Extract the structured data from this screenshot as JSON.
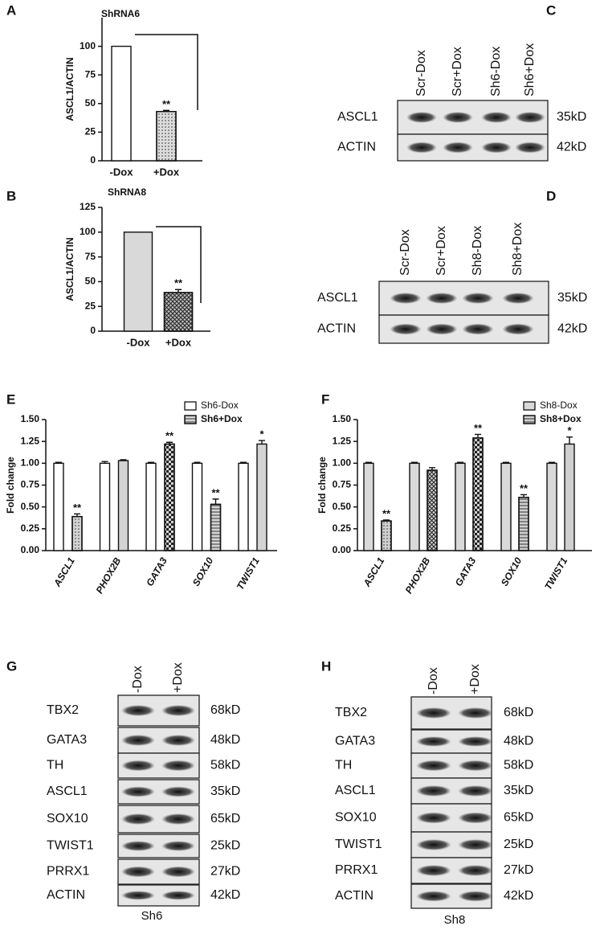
{
  "chart_data": [
    {
      "type": "bar",
      "letter": "A",
      "title": "ShRNA6",
      "y_label": "ASCL1/ACTIN",
      "categories": [
        "-Dox",
        "+Dox"
      ],
      "values": [
        100,
        43
      ],
      "errors": [
        0,
        1
      ],
      "colors": [
        "#ffffff",
        "#dcdcdc"
      ],
      "significance": [
        null,
        "**"
      ],
      "ylim": [
        0,
        125
      ],
      "yticks": [
        0,
        25,
        50,
        75,
        100
      ]
    },
    {
      "type": "bar",
      "letter": "B",
      "title": "ShRNA8",
      "y_label": "ASCL1/ACTIN",
      "categories": [
        "-Dox",
        "+Dox"
      ],
      "values": [
        100,
        39
      ],
      "errors": [
        0,
        3
      ],
      "colors": [
        "#d9d9d9",
        "#bbbbbb"
      ],
      "significance": [
        null,
        "**"
      ],
      "ylim": [
        0,
        125
      ],
      "yticks": [
        0,
        25,
        50,
        75,
        100,
        125
      ]
    },
    {
      "type": "grouped",
      "letter": "E",
      "y_label": "Fold change",
      "categories": [
        "ASCL1",
        "PHOX2B",
        "GATA3",
        "SOX10",
        "TWIST1"
      ],
      "series": [
        {
          "name": "Sh6-Dox",
          "color": "#ffffff",
          "values": [
            1,
            1,
            1,
            1,
            1
          ],
          "errors": [
            0.01,
            0.02,
            0.01,
            0.01,
            0.01
          ]
        },
        {
          "name": "Sh6+Dox",
          "color": "#d4d4d4",
          "values": [
            0.39,
            1.03,
            1.22,
            0.53,
            1.22
          ],
          "errors": [
            0.03,
            0.01,
            0.02,
            0.06,
            0.04
          ]
        }
      ],
      "significance": [
        "**",
        null,
        "**",
        "**",
        "*"
      ],
      "ylim": [
        0,
        1.5
      ],
      "yticks": [
        {
          "value": 0,
          "label": "0.00"
        },
        {
          "value": 0.25,
          "label": "0.25"
        },
        {
          "value": 0.5,
          "label": "0.50"
        },
        {
          "value": 0.75,
          "label": "0.75"
        },
        {
          "value": 1,
          "label": "1.00"
        },
        {
          "value": 1.25,
          "label": "1.25"
        },
        {
          "value": 1.5,
          "label": "1.50"
        }
      ]
    },
    {
      "type": "grouped",
      "letter": "F",
      "y_label": "Fold change",
      "categories": [
        "ASCL1",
        "PHOX2B",
        "GATA3",
        "SOX10",
        "TWIST1"
      ],
      "series": [
        {
          "name": "Sh8-Dox",
          "color": "#d9d9d9",
          "values": [
            1,
            1,
            1,
            1,
            1
          ],
          "errors": [
            0.01,
            0.01,
            0.01,
            0.01,
            0.01
          ]
        },
        {
          "name": "Sh8+Dox",
          "color": "#cfcfcf",
          "values": [
            0.34,
            0.92,
            1.29,
            0.61,
            1.22
          ],
          "errors": [
            0.01,
            0.03,
            0.04,
            0.03,
            0.08
          ]
        }
      ],
      "significance": [
        "**",
        null,
        "**",
        "**",
        "*"
      ],
      "ylim": [
        0,
        1.5
      ],
      "yticks": [
        {
          "value": 0,
          "label": "0.00"
        },
        {
          "value": 0.25,
          "label": "0.25"
        },
        {
          "value": 0.5,
          "label": "0.50"
        },
        {
          "value": 0.75,
          "label": "0.75"
        },
        {
          "value": 1,
          "label": "1.00"
        },
        {
          "value": 1.25,
          "label": "1.25"
        },
        {
          "value": 1.5,
          "label": "1.50"
        }
      ]
    }
  ],
  "blots": [
    {
      "letter": "C",
      "lanes": [
        "Scr-Dox",
        "Scr+Dox",
        "Sh6-Dox",
        "Sh6+Dox"
      ],
      "rows": [
        {
          "protein": "ASCL1",
          "size": "35kD"
        },
        {
          "protein": "ACTIN",
          "size": "42kD"
        }
      ]
    },
    {
      "letter": "D",
      "lanes": [
        "Scr-Dox",
        "Scr+Dox",
        "Sh8-Dox",
        "Sh8+Dox"
      ],
      "rows": [
        {
          "protein": "ASCL1",
          "size": "35kD"
        },
        {
          "protein": "ACTIN",
          "size": "42kD"
        }
      ]
    },
    {
      "letter": "G",
      "lanes": [
        "-Dox",
        "+Dox"
      ],
      "caption": "Sh6",
      "rows": [
        {
          "protein": "TBX2",
          "size": "68kD"
        },
        {
          "protein": "GATA3",
          "size": "48kD"
        },
        {
          "protein": "TH",
          "size": "58kD"
        },
        {
          "protein": "ASCL1",
          "size": "35kD"
        },
        {
          "protein": "SOX10",
          "size": "65kD"
        },
        {
          "protein": "TWIST1",
          "size": "25kD"
        },
        {
          "protein": "PRRX1",
          "size": "27kD"
        },
        {
          "protein": "ACTIN",
          "size": "42kD"
        }
      ]
    },
    {
      "letter": "H",
      "lanes": [
        "-Dox",
        "+Dox"
      ],
      "caption": "Sh8",
      "rows": [
        {
          "protein": "TBX2",
          "size": "68kD"
        },
        {
          "protein": "GATA3",
          "size": "48kD"
        },
        {
          "protein": "TH",
          "size": "58kD"
        },
        {
          "protein": "ASCL1",
          "size": "35kD"
        },
        {
          "protein": "SOX10",
          "size": "65kD"
        },
        {
          "protein": "TWIST1",
          "size": "25kD"
        },
        {
          "protein": "PRRX1",
          "size": "27kD"
        },
        {
          "protein": "ACTIN",
          "size": "42kD"
        }
      ]
    }
  ]
}
